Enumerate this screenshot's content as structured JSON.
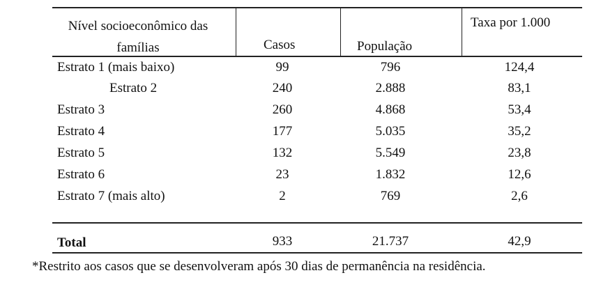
{
  "table": {
    "header": [
      "Nível socioeconômico das famílias",
      "Casos",
      "População",
      "Taxa por 1.000"
    ],
    "rows": [
      [
        "Estrato 1 (mais baixo)",
        "99",
        "796",
        "124,4"
      ],
      [
        "Estrato 2",
        "240",
        "2.888",
        "83,1"
      ],
      [
        "Estrato 3",
        "260",
        "4.868",
        "53,4"
      ],
      [
        "Estrato 4",
        "177",
        "5.035",
        "35,2"
      ],
      [
        "Estrato 5",
        "132",
        "5.549",
        "23,8"
      ],
      [
        "Estrato 6",
        "23",
        "1.832",
        "12,6"
      ],
      [
        "Estrato 7 (mais alto)",
        "2",
        "769",
        "2,6"
      ]
    ],
    "total": [
      "Total",
      "933",
      "21.737",
      "42,9"
    ]
  },
  "footnote": "*Restrito aos casos que se desenvolveram após 30 dias de permanência na residência."
}
